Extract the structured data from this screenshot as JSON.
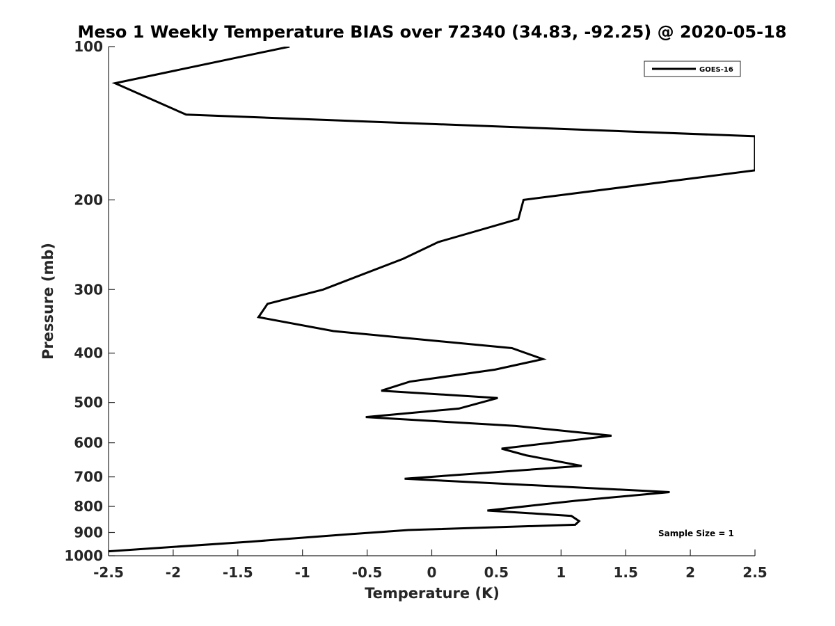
{
  "chart_data": {
    "type": "line",
    "title": "Meso 1 Weekly Temperature BIAS over 72340 (34.83, -92.25) @ 2020-05-18",
    "xlabel": "Temperature (K)",
    "ylabel": "Pressure (mb)",
    "xlim": [
      -2.5,
      2.5
    ],
    "ylim": [
      100,
      1000
    ],
    "y_scale": "log",
    "y_reversed": true,
    "grid": false,
    "legend_position": "top-right",
    "x_ticks": [
      -2.5,
      -2,
      -1.5,
      -1,
      -0.5,
      0,
      0.5,
      1,
      1.5,
      2,
      2.5
    ],
    "x_tick_labels": [
      "-2.5",
      "-2",
      "-1.5",
      "-1",
      "-0.5",
      "0",
      "0.5",
      "1",
      "1.5",
      "2",
      "2.5"
    ],
    "y_ticks": [
      100,
      200,
      300,
      400,
      500,
      600,
      700,
      800,
      900,
      1000
    ],
    "y_tick_labels": [
      "100",
      "200",
      "300",
      "400",
      "500",
      "600",
      "700",
      "800",
      "900",
      "1000"
    ],
    "series": [
      {
        "name": "GOES-16",
        "color": "#000000",
        "points": [
          [
            -1.1,
            100
          ],
          [
            -2.45,
            118
          ],
          [
            -1.9,
            136
          ],
          [
            2.5,
            150
          ],
          [
            2.5,
            175
          ],
          [
            0.71,
            200
          ],
          [
            0.67,
            218
          ],
          [
            0.05,
            242
          ],
          [
            -0.22,
            261
          ],
          [
            -0.84,
            300
          ],
          [
            -1.27,
            320
          ],
          [
            -1.34,
            340
          ],
          [
            -0.76,
            362
          ],
          [
            0.62,
            391
          ],
          [
            0.86,
            411
          ],
          [
            0.49,
            431
          ],
          [
            -0.17,
            455
          ],
          [
            -0.39,
            474
          ],
          [
            0.51,
            490
          ],
          [
            0.21,
            514
          ],
          [
            -0.51,
            534
          ],
          [
            0.65,
            556
          ],
          [
            1.39,
            581
          ],
          [
            0.54,
            616
          ],
          [
            0.73,
            635
          ],
          [
            1.16,
            666
          ],
          [
            -0.21,
            706
          ],
          [
            1.84,
            750
          ],
          [
            1.11,
            780
          ],
          [
            0.43,
            815
          ],
          [
            1.08,
            835
          ],
          [
            1.14,
            855
          ],
          [
            1.11,
            869
          ],
          [
            -0.18,
            890
          ],
          [
            -0.69,
            909
          ],
          [
            -1.4,
            938
          ],
          [
            -2.5,
            980
          ]
        ]
      }
    ],
    "annotations": [
      "Sample Size = 1"
    ]
  }
}
